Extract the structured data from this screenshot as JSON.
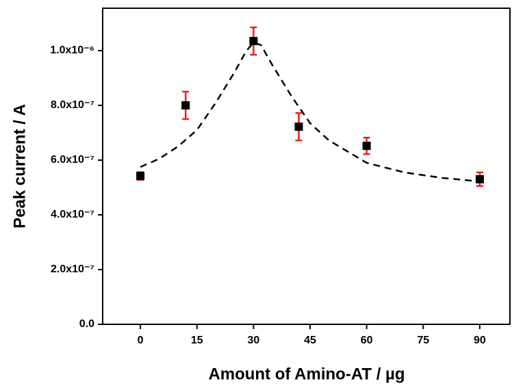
{
  "chart_data": {
    "type": "scatter",
    "x_label": "Amount of Amino-AT / µg",
    "y_label": "Peak current / A",
    "x": [
      0,
      12,
      30,
      42,
      60,
      90
    ],
    "series": [
      {
        "color": "#000000",
        "error_color": "#e8201a",
        "values": [
          5.42e-07,
          8e-07,
          1.035e-06,
          7.22e-07,
          6.52e-07,
          5.3e-07
        ],
        "errors": [
          1.4e-08,
          5e-08,
          5e-08,
          5e-08,
          3e-08,
          2.5e-08
        ]
      }
    ],
    "fit": {
      "color": "#000000",
      "style": "dashed",
      "x": [
        0,
        5,
        10,
        15,
        20,
        25,
        28,
        30,
        32,
        35,
        40,
        45,
        50,
        60,
        70,
        80,
        90
      ],
      "values": [
        5.75e-07,
        6.05e-07,
        6.5e-07,
        7.1e-07,
        8.1e-07,
        9.22e-07,
        9.97e-07,
        1.03e-06,
        1.02e-06,
        9.47e-07,
        8.35e-07,
        7.35e-07,
        6.72e-07,
        5.9e-07,
        5.55e-07,
        5.35e-07,
        5.22e-07
      ]
    },
    "xlim": [
      -10,
      98
    ],
    "ylim": [
      0,
      1.155e-06
    ],
    "xticks": [
      0,
      15,
      30,
      45,
      60,
      75,
      90
    ],
    "yticks": [
      {
        "value": 0,
        "label": "0.0"
      },
      {
        "value": 2e-07,
        "label": "2.0x10⁻⁷"
      },
      {
        "value": 4e-07,
        "label": "4.0x10⁻⁷"
      },
      {
        "value": 6e-07,
        "label": "6.0x10⁻⁷"
      },
      {
        "value": 8e-07,
        "label": "8.0x10⁻⁷"
      },
      {
        "value": 1e-06,
        "label": "1.0x10⁻⁶"
      }
    ],
    "grid": false
  }
}
